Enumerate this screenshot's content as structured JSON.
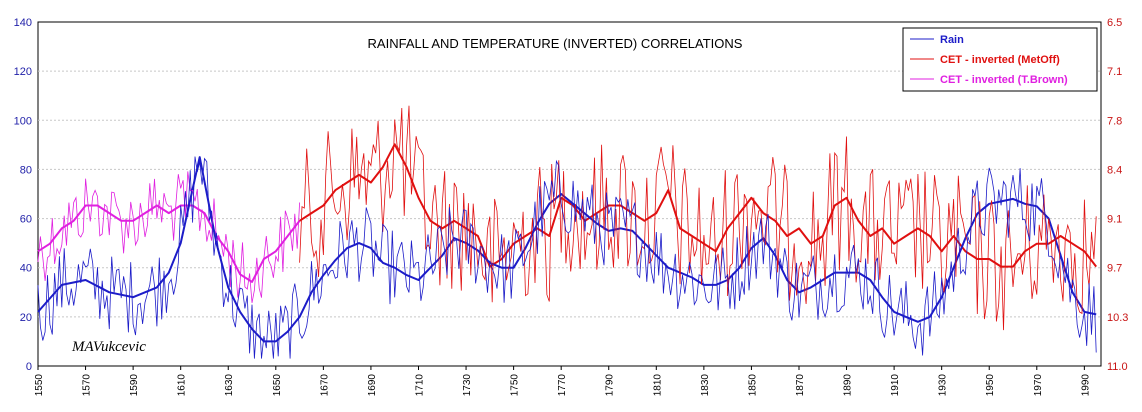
{
  "chart_data": {
    "type": "line",
    "title": "RAINFALL AND TEMPERATURE (INVERTED) CORRELATIONS",
    "signature": "MAVukcevic",
    "x_range": [
      1550,
      1997
    ],
    "x_ticks": [
      "1550",
      "1570",
      "1590",
      "1610",
      "1630",
      "1650",
      "1670",
      "1690",
      "1710",
      "1730",
      "1750",
      "1770",
      "1790",
      "1810",
      "1830",
      "1850",
      "1870",
      "1890",
      "1910",
      "1930",
      "1950",
      "1970",
      "1990"
    ],
    "left_axis": {
      "min": 0,
      "max": 140,
      "ticks": [
        "0",
        "20",
        "40",
        "60",
        "80",
        "100",
        "120",
        "140"
      ]
    },
    "right_axis": {
      "top": 6.5,
      "bottom": 11.0,
      "ticks": [
        "6.5",
        "7.1",
        "7.8",
        "8.4",
        "9.1",
        "9.7",
        "10.3",
        "11.0"
      ]
    },
    "legend": {
      "placement": "top-right",
      "entries": [
        "Rain",
        "CET - inverted (MetOff)",
        "CET - inverted (T.Brown)"
      ]
    },
    "colors": {
      "rain": "#1c1cc8",
      "metoff": "#e01010",
      "tbrown": "#e020e0"
    },
    "series": [
      {
        "name": "Rain",
        "axis": "left",
        "x": [
          1550,
          1560,
          1570,
          1580,
          1590,
          1600,
          1605,
          1610,
          1615,
          1618,
          1620,
          1625,
          1630,
          1635,
          1640,
          1645,
          1650,
          1655,
          1660,
          1665,
          1670,
          1675,
          1680,
          1685,
          1690,
          1695,
          1700,
          1705,
          1710,
          1715,
          1720,
          1725,
          1730,
          1735,
          1740,
          1745,
          1750,
          1755,
          1760,
          1765,
          1770,
          1775,
          1780,
          1785,
          1790,
          1795,
          1800,
          1805,
          1810,
          1815,
          1820,
          1825,
          1830,
          1835,
          1840,
          1845,
          1850,
          1855,
          1860,
          1865,
          1870,
          1875,
          1880,
          1885,
          1890,
          1895,
          1900,
          1905,
          1910,
          1915,
          1920,
          1925,
          1930,
          1935,
          1940,
          1945,
          1950,
          1955,
          1960,
          1965,
          1970,
          1975,
          1980,
          1985,
          1990,
          1995
        ],
        "values": [
          22,
          33,
          35,
          30,
          28,
          32,
          38,
          50,
          72,
          85,
          75,
          50,
          32,
          22,
          15,
          10,
          10,
          14,
          20,
          30,
          37,
          43,
          48,
          50,
          48,
          42,
          40,
          37,
          35,
          40,
          45,
          52,
          50,
          47,
          42,
          40,
          40,
          48,
          58,
          66,
          70,
          66,
          62,
          58,
          55,
          56,
          55,
          50,
          45,
          40,
          38,
          36,
          33,
          33,
          35,
          40,
          48,
          52,
          45,
          35,
          30,
          32,
          35,
          38,
          38,
          38,
          35,
          28,
          22,
          20,
          18,
          20,
          28,
          40,
          52,
          62,
          66,
          67,
          68,
          66,
          65,
          60,
          45,
          30,
          22,
          21
        ]
      },
      {
        "name": "CET - inverted (MetOff)",
        "axis": "right",
        "x": [
          1660,
          1665,
          1670,
          1675,
          1680,
          1685,
          1690,
          1695,
          1700,
          1705,
          1710,
          1715,
          1720,
          1725,
          1730,
          1735,
          1740,
          1745,
          1750,
          1755,
          1760,
          1765,
          1770,
          1775,
          1780,
          1785,
          1790,
          1795,
          1800,
          1805,
          1810,
          1815,
          1820,
          1825,
          1830,
          1835,
          1840,
          1845,
          1850,
          1855,
          1860,
          1865,
          1870,
          1875,
          1880,
          1885,
          1890,
          1895,
          1900,
          1905,
          1910,
          1915,
          1920,
          1925,
          1930,
          1935,
          1940,
          1945,
          1950,
          1955,
          1960,
          1965,
          1970,
          1975,
          1980,
          1985,
          1990,
          1995
        ],
        "values": [
          9.1,
          9.0,
          8.9,
          8.7,
          8.6,
          8.5,
          8.6,
          8.4,
          8.1,
          8.4,
          8.8,
          9.1,
          9.2,
          9.1,
          9.2,
          9.3,
          9.7,
          9.6,
          9.4,
          9.3,
          9.2,
          9.3,
          8.8,
          8.9,
          9.1,
          9.0,
          8.9,
          8.9,
          9.0,
          9.1,
          9.0,
          8.7,
          9.2,
          9.3,
          9.4,
          9.5,
          9.2,
          9.0,
          8.8,
          9.0,
          9.1,
          9.3,
          9.2,
          9.4,
          9.3,
          8.9,
          8.8,
          9.1,
          9.3,
          9.2,
          9.4,
          9.3,
          9.2,
          9.3,
          9.5,
          9.3,
          9.5,
          9.6,
          9.6,
          9.7,
          9.7,
          9.5,
          9.4,
          9.4,
          9.3,
          9.4,
          9.5,
          9.7
        ]
      },
      {
        "name": "CET - inverted (T.Brown)",
        "axis": "right",
        "x": [
          1550,
          1555,
          1560,
          1565,
          1570,
          1575,
          1580,
          1585,
          1590,
          1595,
          1600,
          1605,
          1610,
          1615,
          1620,
          1625,
          1630,
          1635,
          1640,
          1645,
          1650,
          1655,
          1660
        ],
        "values": [
          9.5,
          9.4,
          9.2,
          9.1,
          8.9,
          8.9,
          9.0,
          9.1,
          9.1,
          9.0,
          8.9,
          9.0,
          8.9,
          8.9,
          9.0,
          9.3,
          9.5,
          9.8,
          9.9,
          9.6,
          9.5,
          9.3,
          9.1
        ]
      }
    ]
  }
}
